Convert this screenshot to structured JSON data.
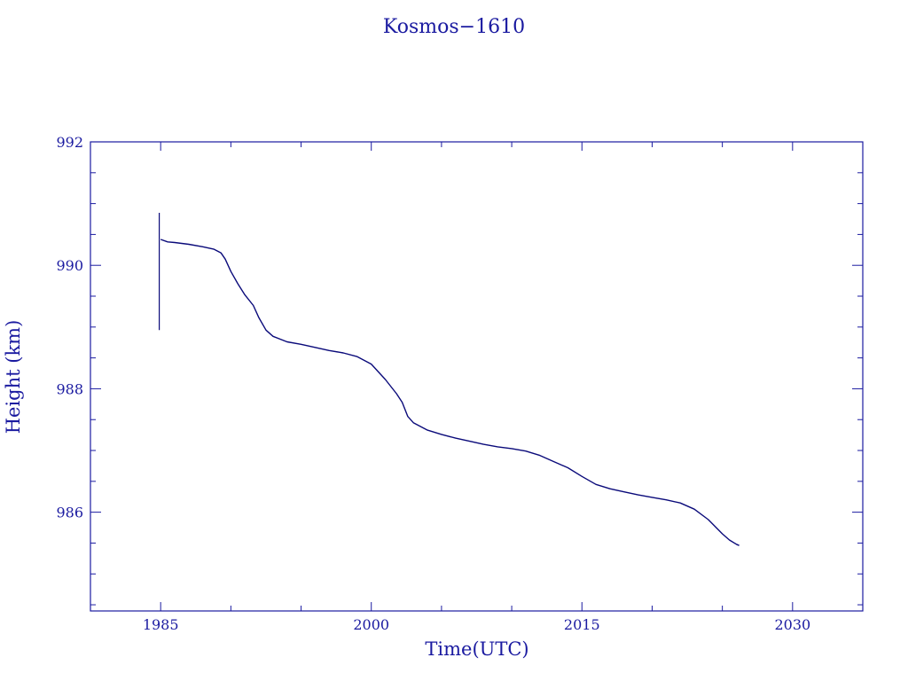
{
  "chart_data": {
    "type": "line",
    "title": "Kosmos−1610",
    "xlabel": "Time(UTC)",
    "ylabel": "Height (km)",
    "xlim": [
      1980,
      2035
    ],
    "ylim": [
      984.4,
      992
    ],
    "x_ticks": [
      1985,
      2000,
      2015,
      2030
    ],
    "x_tick_labels": [
      "1985",
      "2000",
      "2015",
      "2030"
    ],
    "y_ticks": [
      986,
      988,
      990,
      992
    ],
    "y_tick_labels": [
      "986",
      "988",
      "990",
      "992"
    ],
    "grid": false,
    "colors": {
      "axis": "#1a1aa0",
      "line": "#0a0a7a",
      "text": "#1a1aa0"
    },
    "spike": {
      "x": 1984.9,
      "ymin": 988.95,
      "ymax": 990.85
    },
    "series": [
      {
        "values": [
          [
            1985.0,
            990.42
          ],
          [
            1985.5,
            990.38
          ],
          [
            1986.0,
            990.37
          ],
          [
            1987.0,
            990.34
          ],
          [
            1988.0,
            990.3
          ],
          [
            1988.8,
            990.26
          ],
          [
            1989.3,
            990.2
          ],
          [
            1989.6,
            990.1
          ],
          [
            1990.0,
            989.9
          ],
          [
            1990.5,
            989.7
          ],
          [
            1991.0,
            989.52
          ],
          [
            1991.6,
            989.35
          ],
          [
            1992.0,
            989.15
          ],
          [
            1992.5,
            988.95
          ],
          [
            1993.0,
            988.85
          ],
          [
            1994.0,
            988.76
          ],
          [
            1995.0,
            988.72
          ],
          [
            1996.0,
            988.67
          ],
          [
            1997.0,
            988.62
          ],
          [
            1998.0,
            988.58
          ],
          [
            1999.0,
            988.52
          ],
          [
            2000.0,
            988.4
          ],
          [
            2001.0,
            988.15
          ],
          [
            2001.8,
            987.92
          ],
          [
            2002.2,
            987.78
          ],
          [
            2002.6,
            987.55
          ],
          [
            2003.0,
            987.45
          ],
          [
            2004.0,
            987.33
          ],
          [
            2005.0,
            987.26
          ],
          [
            2006.0,
            987.2
          ],
          [
            2007.0,
            987.15
          ],
          [
            2008.0,
            987.1
          ],
          [
            2009.0,
            987.06
          ],
          [
            2010.0,
            987.03
          ],
          [
            2011.0,
            986.99
          ],
          [
            2012.0,
            986.92
          ],
          [
            2013.0,
            986.82
          ],
          [
            2014.0,
            986.72
          ],
          [
            2015.0,
            986.58
          ],
          [
            2016.0,
            986.45
          ],
          [
            2017.0,
            986.38
          ],
          [
            2018.0,
            986.33
          ],
          [
            2019.0,
            986.28
          ],
          [
            2020.0,
            986.24
          ],
          [
            2021.0,
            986.2
          ],
          [
            2022.0,
            986.15
          ],
          [
            2023.0,
            986.05
          ],
          [
            2024.0,
            985.88
          ],
          [
            2025.0,
            985.65
          ],
          [
            2025.5,
            985.55
          ],
          [
            2026.0,
            985.48
          ],
          [
            2026.2,
            985.46
          ]
        ]
      }
    ]
  }
}
